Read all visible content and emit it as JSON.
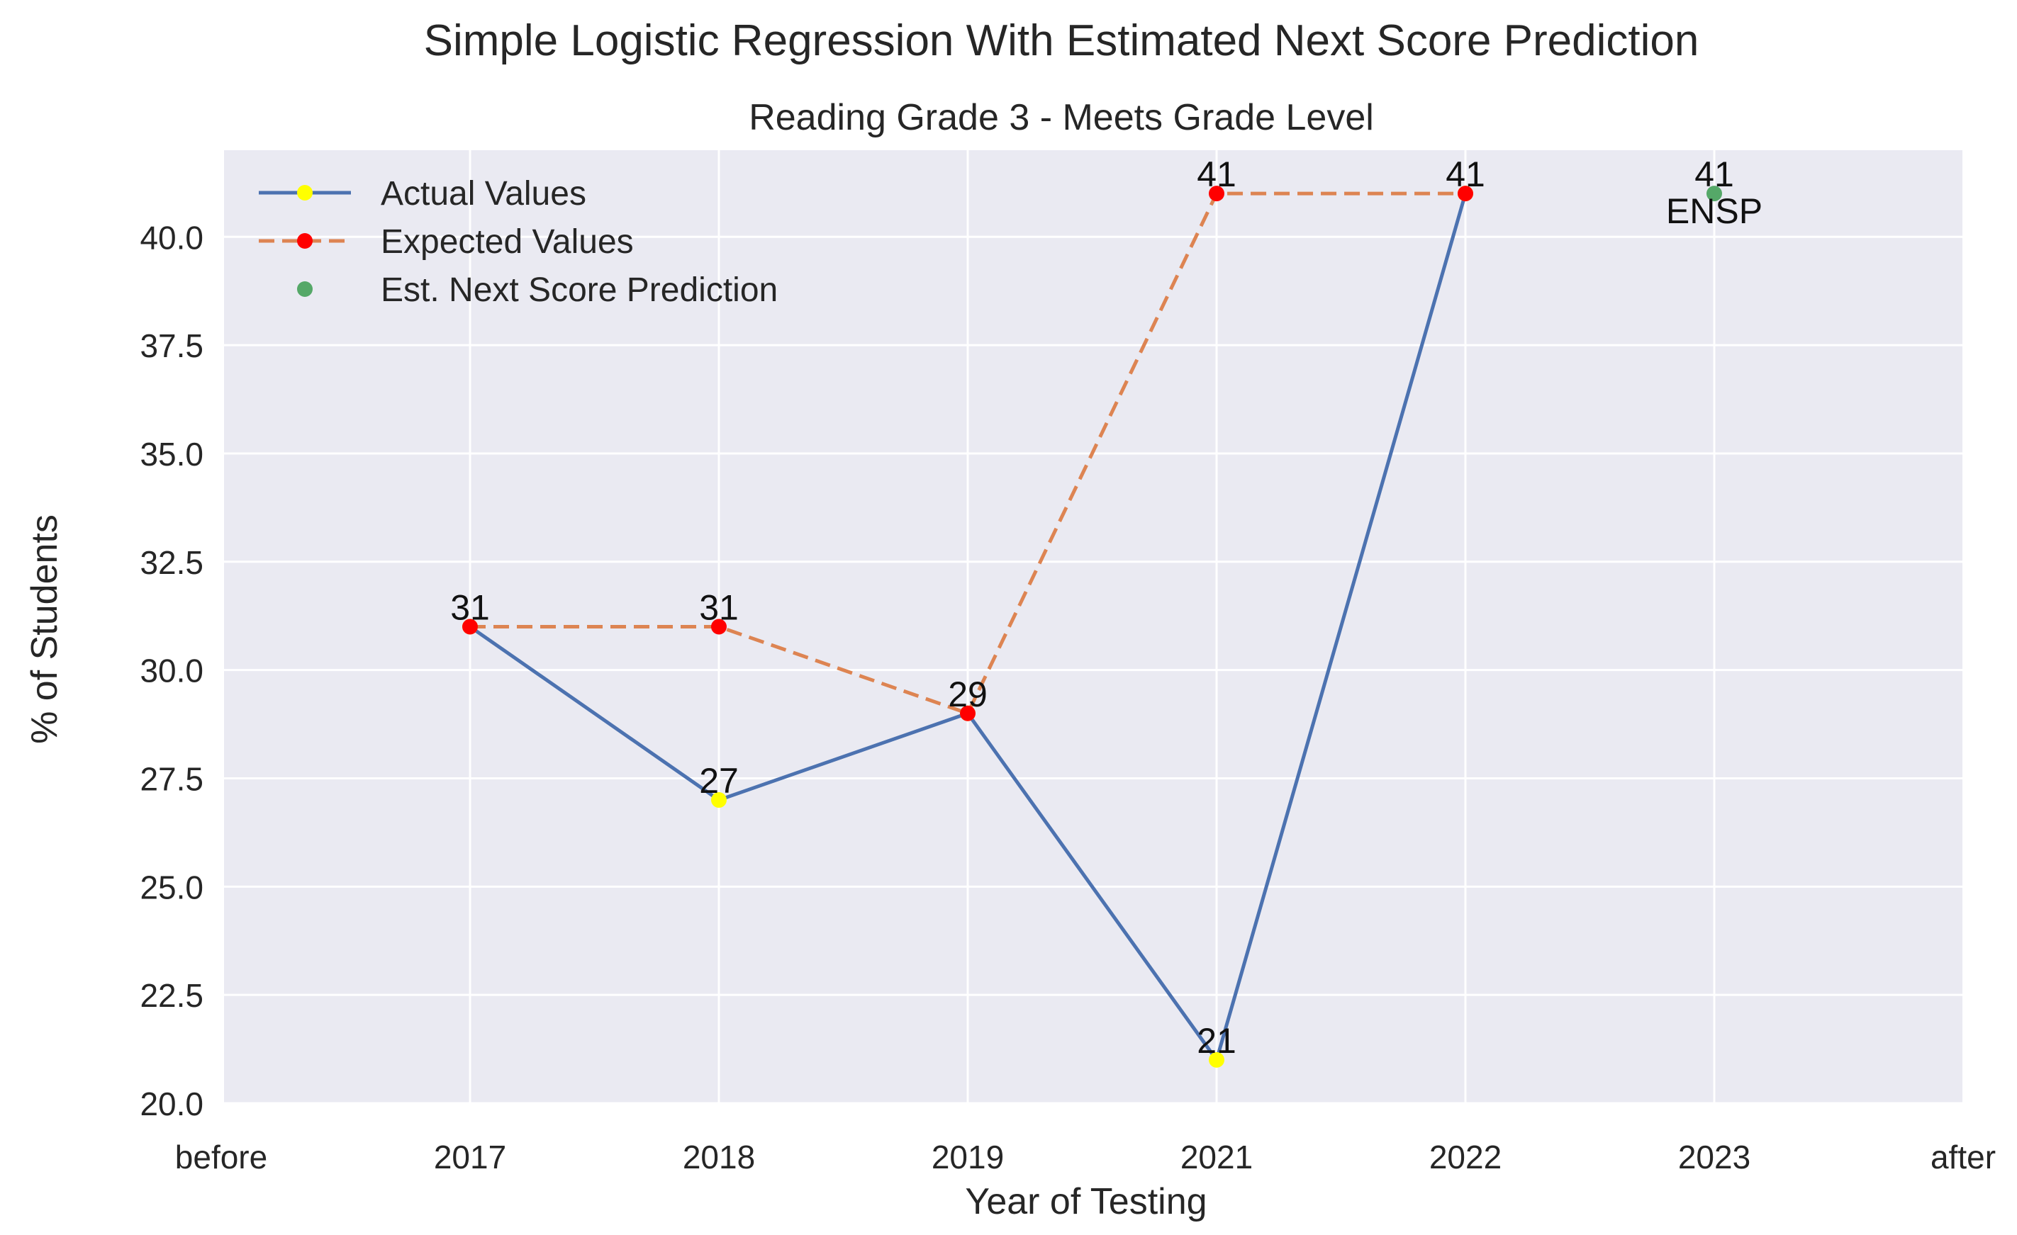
{
  "chart_data": {
    "type": "line",
    "title": "Simple Logistic Regression With Estimated Next Score Prediction",
    "subtitle": "Reading Grade 3 - Meets Grade Level",
    "xlabel": "Year of Testing",
    "ylabel": "% of Students",
    "categories": [
      "before",
      "2017",
      "2018",
      "2019",
      "2021",
      "2022",
      "2023",
      "after"
    ],
    "ylim": [
      20.0,
      42.0
    ],
    "yticks": [
      "20.0",
      "22.5",
      "25.0",
      "27.5",
      "30.0",
      "32.5",
      "35.0",
      "37.5",
      "40.0"
    ],
    "grid": true,
    "legend_position": "top-left",
    "series": [
      {
        "name": "Actual Values",
        "style": "solid",
        "line_color": "#4c72b0",
        "marker_color": "#ffff00",
        "points": [
          {
            "x": "2017",
            "y": 31,
            "label": "31"
          },
          {
            "x": "2018",
            "y": 27,
            "label": "27"
          },
          {
            "x": "2019",
            "y": 29,
            "label": "29"
          },
          {
            "x": "2021",
            "y": 21,
            "label": "21"
          },
          {
            "x": "2022",
            "y": 41,
            "label": "41"
          }
        ]
      },
      {
        "name": "Expected Values",
        "style": "dashed",
        "line_color": "#dd8452",
        "marker_color": "#ff0000",
        "points": [
          {
            "x": "2017",
            "y": 31,
            "label": "31"
          },
          {
            "x": "2018",
            "y": 31,
            "label": "31"
          },
          {
            "x": "2019",
            "y": 29,
            "label": "29"
          },
          {
            "x": "2021",
            "y": 41,
            "label": "41"
          },
          {
            "x": "2022",
            "y": 41,
            "label": "41"
          }
        ]
      },
      {
        "name": "Est. Next Score Prediction",
        "style": "marker-only",
        "line_color": "none",
        "marker_color": "#55a868",
        "points": [
          {
            "x": "2023",
            "y": 41,
            "label": "41",
            "annotation": "ENSP"
          }
        ]
      }
    ]
  },
  "colors": {
    "plot_background": "#eaeaf2",
    "grid": "#ffffff",
    "text": "#262626"
  }
}
